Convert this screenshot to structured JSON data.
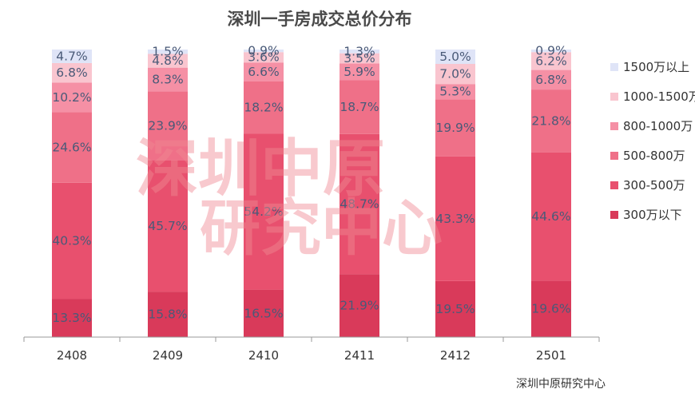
{
  "chart_data": {
    "type": "bar",
    "stacked": true,
    "title": "深圳一手房成交总价分布",
    "categories": [
      "2408",
      "2409",
      "2410",
      "2411",
      "2412",
      "2501"
    ],
    "series": [
      {
        "name": "300万以下",
        "color": "#d93a5a",
        "values": [
          13.3,
          15.8,
          16.5,
          21.9,
          19.5,
          19.6
        ],
        "labels": [
          "13.3%",
          "15.8%",
          "16.5%",
          "21.9%",
          "19.5%",
          "19.6%"
        ]
      },
      {
        "name": "300-500万",
        "color": "#e8506e",
        "values": [
          40.3,
          45.7,
          54.2,
          48.7,
          43.3,
          44.6
        ],
        "labels": [
          "40.3%",
          "45.7%",
          "54.2%",
          "48.7%",
          "43.3%",
          "44.6%"
        ]
      },
      {
        "name": "500-800万",
        "color": "#ef7088",
        "values": [
          24.6,
          23.9,
          18.2,
          18.7,
          19.9,
          21.8
        ],
        "labels": [
          "24.6%",
          "23.9%",
          "18.2%",
          "18.7%",
          "19.9%",
          "21.8%"
        ]
      },
      {
        "name": "800-1000万",
        "color": "#f590a5",
        "values": [
          10.2,
          8.3,
          6.6,
          5.9,
          5.3,
          6.8
        ],
        "labels": [
          "10.2%",
          "8.3%",
          "6.6%",
          "5.9%",
          "5.3%",
          "6.8%"
        ]
      },
      {
        "name": "1000-1500万",
        "color": "#f9c5cf",
        "values": [
          6.8,
          4.8,
          3.6,
          3.5,
          7.0,
          6.2
        ],
        "labels": [
          "6.8%",
          "4.8%",
          "3.6%",
          "3.5%",
          "7.0%",
          "6.2%"
        ]
      },
      {
        "name": "1500万以上",
        "color": "#dfe4f7",
        "values": [
          4.7,
          1.5,
          0.9,
          1.3,
          5.0,
          0.9
        ],
        "labels": [
          "4.7%",
          "1.5%",
          "0.9%",
          "1.3%",
          "5.0%",
          "0.9%"
        ]
      }
    ],
    "legend_labels": [
      "1500万以上",
      "1000-1500万",
      "800-1000万",
      "500-800万",
      "300-500万",
      "300万以下"
    ],
    "ylim": [
      0,
      100
    ],
    "legend_position": "right",
    "grid": false
  },
  "watermark": {
    "line1": "深圳中原",
    "line2": "研究中心"
  },
  "source": "深圳中原研究中心"
}
